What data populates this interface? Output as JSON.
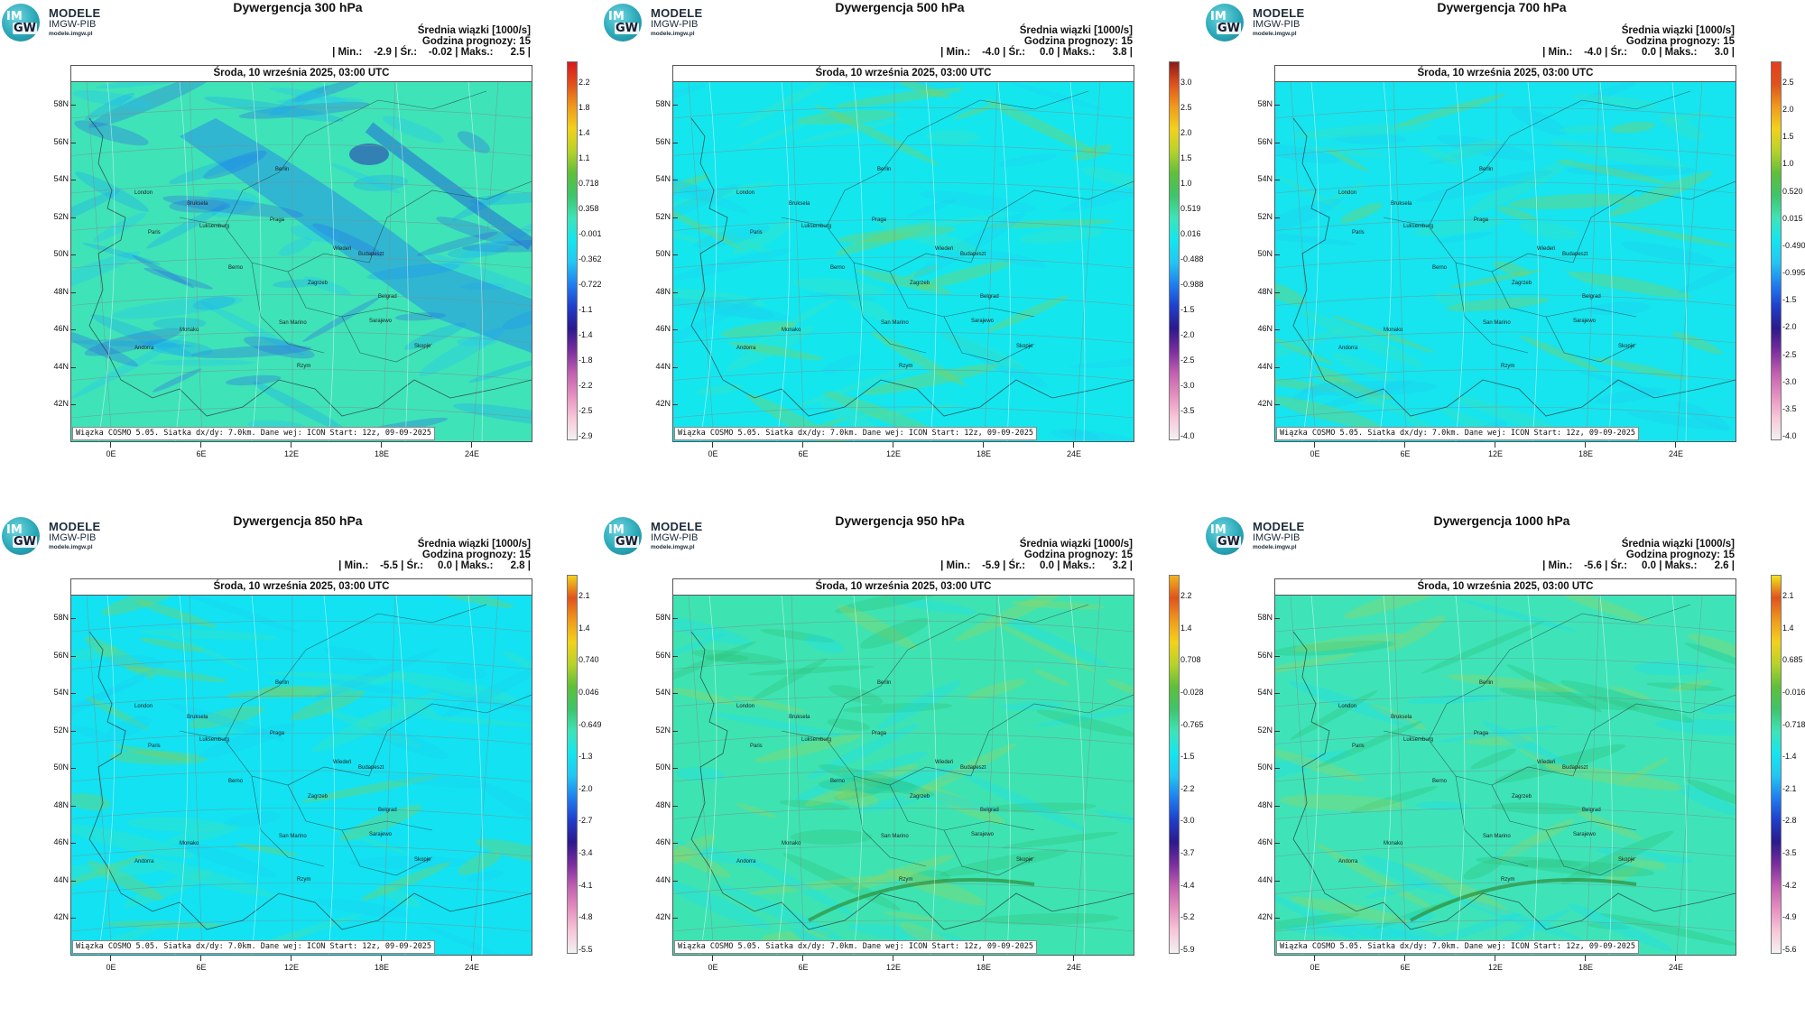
{
  "brand": {
    "line1": "MODELE",
    "line2": "IMGW-PIB",
    "url": "modele.imgw.pl",
    "circle_top": "IM",
    "circle_bottom": "GW"
  },
  "common": {
    "subtitle_lines": [
      "Średnia wiązki [1000/s]",
      "Godzina prognozy: 15"
    ],
    "date": "Środa, 10 września 2025, 03:00 UTC",
    "footer": "Wiązka COSMO 5.05. Siatka dx/dy: 7.0km. Dane wej: ICON Start: 12z, 09-09-2025",
    "lat_labels": [
      "58N",
      "56N",
      "54N",
      "52N",
      "50N",
      "48N",
      "46N",
      "44N",
      "42N"
    ],
    "lon_labels": [
      "0E",
      "6E",
      "12E",
      "18E",
      "24E"
    ],
    "cities": [
      "London",
      "Paris",
      "Bruksela",
      "Luksemburg",
      "Praga",
      "Berlin",
      "Wiedeń",
      "Budapeszt",
      "Zagrzeb",
      "Belgrad",
      "Berno",
      "San Marino",
      "Sarajewo",
      "Skopje",
      "Rzym",
      "Andorra",
      "Monako"
    ]
  },
  "panels": [
    {
      "title": "Dywergencja 300 hPa",
      "stats": "| Min.:    -2.9 | Śr.:    -0.02 | Maks.:      2.5 |",
      "colorbar": [
        "2.2",
        "1.8",
        "1.4",
        "1.1",
        "0.718",
        "0.358",
        "-0.001",
        "-0.362",
        "-0.722",
        "-1.1",
        "-1.4",
        "-1.8",
        "-2.2",
        "-2.5",
        "-2.9"
      ],
      "top_color": "#d7191c",
      "bg": "#3fe3b8"
    },
    {
      "title": "Dywergencja 500 hPa",
      "stats": "| Min.:    -4.0 | Śr.:     0.0 | Maks.:      3.8 |",
      "colorbar": [
        "3.0",
        "2.5",
        "2.0",
        "1.5",
        "1.0",
        "0.519",
        "0.016",
        "-0.488",
        "-0.988",
        "-1.5",
        "-2.0",
        "-2.5",
        "-3.0",
        "-3.5",
        "-4.0"
      ],
      "top_color": "#8b1a1a",
      "bg": "#14e6ee"
    },
    {
      "title": "Dywergencja 700 hPa",
      "stats": "| Min.:    -4.0 | Śr.:     0.0 | Maks.:      3.0 |",
      "colorbar": [
        "2.5",
        "2.0",
        "1.5",
        "1.0",
        "0.520",
        "0.015",
        "-0.490",
        "-0.995",
        "-1.5",
        "-2.0",
        "-2.5",
        "-3.0",
        "-3.5",
        "-4.0"
      ],
      "top_color": "#e63d1c",
      "bg": "#16e4ee"
    },
    {
      "title": "Dywergencja 850 hPa",
      "stats": "| Min.:    -5.5 | Śr.:     0.0 | Maks.:      2.8 |",
      "colorbar": [
        "2.1",
        "1.4",
        "0.740",
        "0.046",
        "-0.649",
        "-1.3",
        "-2.0",
        "-2.7",
        "-3.4",
        "-4.1",
        "-4.8",
        "-5.5"
      ],
      "top_color": "#f2d21c",
      "bg": "#12e2f2"
    },
    {
      "title": "Dywergencja 950 hPa",
      "stats": "| Min.:    -5.9 | Śr.:     0.0 | Maks.:      3.2 |",
      "colorbar": [
        "2.2",
        "1.4",
        "0.708",
        "-0.028",
        "-0.765",
        "-1.5",
        "-2.2",
        "-3.0",
        "-3.7",
        "-4.4",
        "-5.2",
        "-5.9"
      ],
      "top_color": "#f0b51c",
      "bg": "#3ee3b2"
    },
    {
      "title": "Dywergencja 1000 hPa",
      "stats": "| Min.:    -5.6 | Śr.:     0.0 | Maks.:      2.6 |",
      "colorbar": [
        "2.1",
        "1.4",
        "0.685",
        "-0.016",
        "-0.718",
        "-1.4",
        "-2.1",
        "-2.8",
        "-3.5",
        "-4.2",
        "-4.9",
        "-5.6"
      ],
      "top_color": "#f2e21c",
      "bg": "#3ee4b8"
    }
  ]
}
